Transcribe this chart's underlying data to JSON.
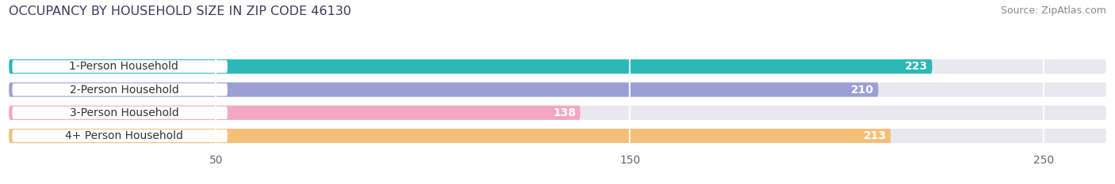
{
  "title": "OCCUPANCY BY HOUSEHOLD SIZE IN ZIP CODE 46130",
  "source": "Source: ZipAtlas.com",
  "categories": [
    "1-Person Household",
    "2-Person Household",
    "3-Person Household",
    "4+ Person Household"
  ],
  "values": [
    223,
    210,
    138,
    213
  ],
  "bar_colors": [
    "#2ab8b8",
    "#9b9fd4",
    "#f2a8c0",
    "#f5bf78"
  ],
  "bar_bg_color": "#e8e8ee",
  "text_color_white": "#ffffff",
  "text_color_dark": "#333333",
  "xlim": [
    0,
    265
  ],
  "xticks": [
    50,
    150,
    250
  ],
  "bar_height": 0.62,
  "title_fontsize": 11.5,
  "source_fontsize": 9,
  "label_fontsize": 10,
  "value_fontsize": 10,
  "tick_fontsize": 10,
  "figsize": [
    14.06,
    2.33
  ],
  "dpi": 100,
  "bg_color": "#ffffff"
}
